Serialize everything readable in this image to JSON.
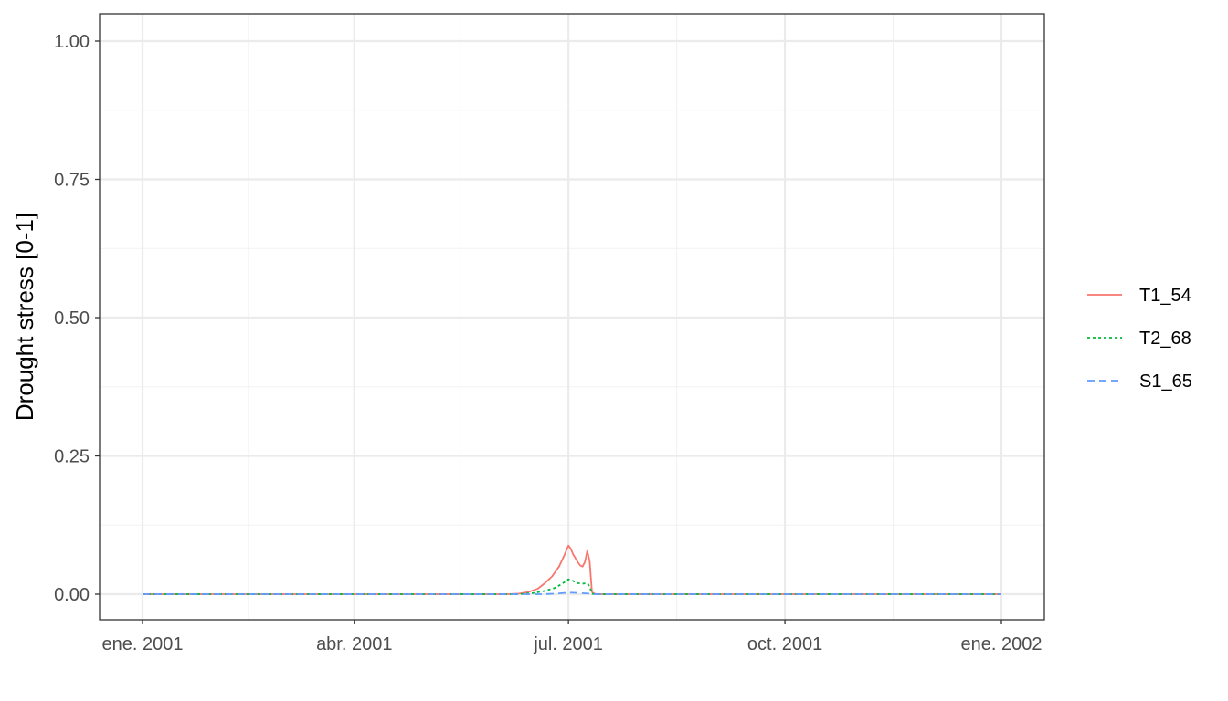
{
  "chart_data": {
    "type": "line",
    "title": "",
    "xlabel": "",
    "ylabel": "Drought stress [0-1]",
    "ylim": [
      0,
      1
    ],
    "xlim": [
      "2001-01-01",
      "2002-01-01"
    ],
    "x_ticks": [
      {
        "date": "2001-01-01",
        "label": "ene. 2001"
      },
      {
        "date": "2001-04-01",
        "label": "abr. 2001"
      },
      {
        "date": "2001-07-01",
        "label": "jul. 2001"
      },
      {
        "date": "2001-10-01",
        "label": "oct. 2001"
      },
      {
        "date": "2002-01-01",
        "label": "ene. 2002"
      }
    ],
    "x_minor_ticks": [
      "2001-02-15",
      "2001-05-16",
      "2001-08-16",
      "2001-11-16"
    ],
    "y_ticks": [
      {
        "value": 0,
        "label": "0.00"
      },
      {
        "value": 0.25,
        "label": "0.25"
      },
      {
        "value": 0.5,
        "label": "0.50"
      },
      {
        "value": 0.75,
        "label": "0.75"
      },
      {
        "value": 1,
        "label": "1.00"
      }
    ],
    "y_minor_ticks": [
      0.125,
      0.375,
      0.625,
      0.875
    ],
    "grid": true,
    "legend_position": "right",
    "series": [
      {
        "name": "T1_54",
        "color": "#F8766D",
        "dash": "solid",
        "points": [
          [
            "2001-01-01",
            0
          ],
          [
            "2001-06-05",
            0
          ],
          [
            "2001-06-10",
            0.001
          ],
          [
            "2001-06-14",
            0.004
          ],
          [
            "2001-06-18",
            0.01
          ],
          [
            "2001-06-21",
            0.02
          ],
          [
            "2001-06-24",
            0.032
          ],
          [
            "2001-06-27",
            0.05
          ],
          [
            "2001-06-29",
            0.068
          ],
          [
            "2001-07-01",
            0.088
          ],
          [
            "2001-07-02",
            0.082
          ],
          [
            "2001-07-03",
            0.072
          ],
          [
            "2001-07-05",
            0.058
          ],
          [
            "2001-07-06",
            0.052
          ],
          [
            "2001-07-07",
            0.05
          ],
          [
            "2001-07-08",
            0.058
          ],
          [
            "2001-07-09",
            0.078
          ],
          [
            "2001-07-10",
            0.06
          ],
          [
            "2001-07-11",
            0.004
          ],
          [
            "2001-07-12",
            0.001
          ],
          [
            "2001-07-13",
            0
          ],
          [
            "2002-01-01",
            0
          ]
        ]
      },
      {
        "name": "T2_68",
        "color": "#00BA38",
        "dash": "dotted",
        "points": [
          [
            "2001-01-01",
            0
          ],
          [
            "2001-06-10",
            0
          ],
          [
            "2001-06-16",
            0.002
          ],
          [
            "2001-06-21",
            0.006
          ],
          [
            "2001-06-25",
            0.011
          ],
          [
            "2001-06-28",
            0.018
          ],
          [
            "2001-07-01",
            0.027
          ],
          [
            "2001-07-03",
            0.024
          ],
          [
            "2001-07-05",
            0.02
          ],
          [
            "2001-07-07",
            0.019
          ],
          [
            "2001-07-09",
            0.02
          ],
          [
            "2001-07-10",
            0.014
          ],
          [
            "2001-07-11",
            0.001
          ],
          [
            "2001-07-12",
            0
          ],
          [
            "2002-01-01",
            0
          ]
        ]
      },
      {
        "name": "S1_65",
        "color": "#619CFF",
        "dash": "dashed",
        "points": [
          [
            "2001-01-01",
            0
          ],
          [
            "2001-06-20",
            0
          ],
          [
            "2001-06-26",
            0.001
          ],
          [
            "2001-07-01",
            0.003
          ],
          [
            "2001-07-06",
            0.002
          ],
          [
            "2001-07-10",
            0.001
          ],
          [
            "2001-07-12",
            0
          ],
          [
            "2002-01-01",
            0
          ]
        ]
      }
    ]
  }
}
